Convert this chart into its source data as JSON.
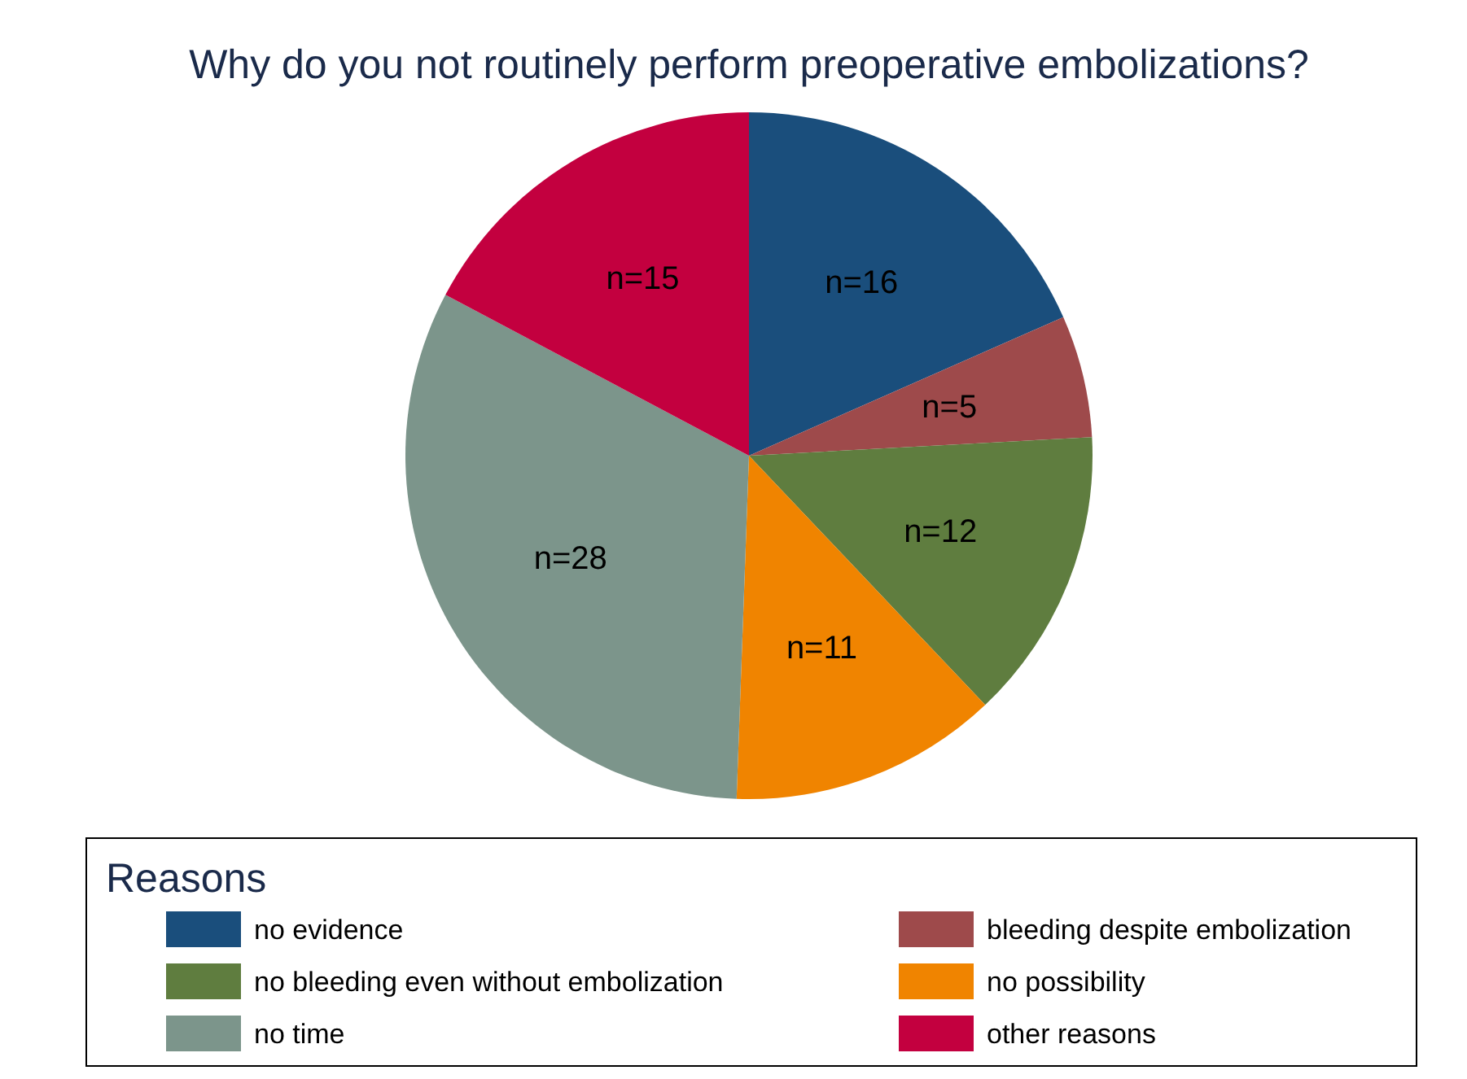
{
  "chart_data": {
    "type": "pie",
    "title": "Why do you not routinely perform preoperative embolizations?",
    "legend_title": "Reasons",
    "legend": "bottom",
    "categories": [
      "no evidence",
      "bleeding despite embolization",
      "no bleeding even without embolization",
      "no possibility",
      "no time",
      "other reasons"
    ],
    "values": [
      16,
      5,
      12,
      11,
      28,
      15
    ],
    "colors": [
      "#1a4e7c",
      "#9e4a4b",
      "#5f7d3f",
      "#f08400",
      "#7c958b",
      "#c3003f"
    ],
    "value_labels": [
      "n=16",
      "n=5",
      "n=12",
      "n=11",
      "n=28",
      "n=15"
    ]
  }
}
